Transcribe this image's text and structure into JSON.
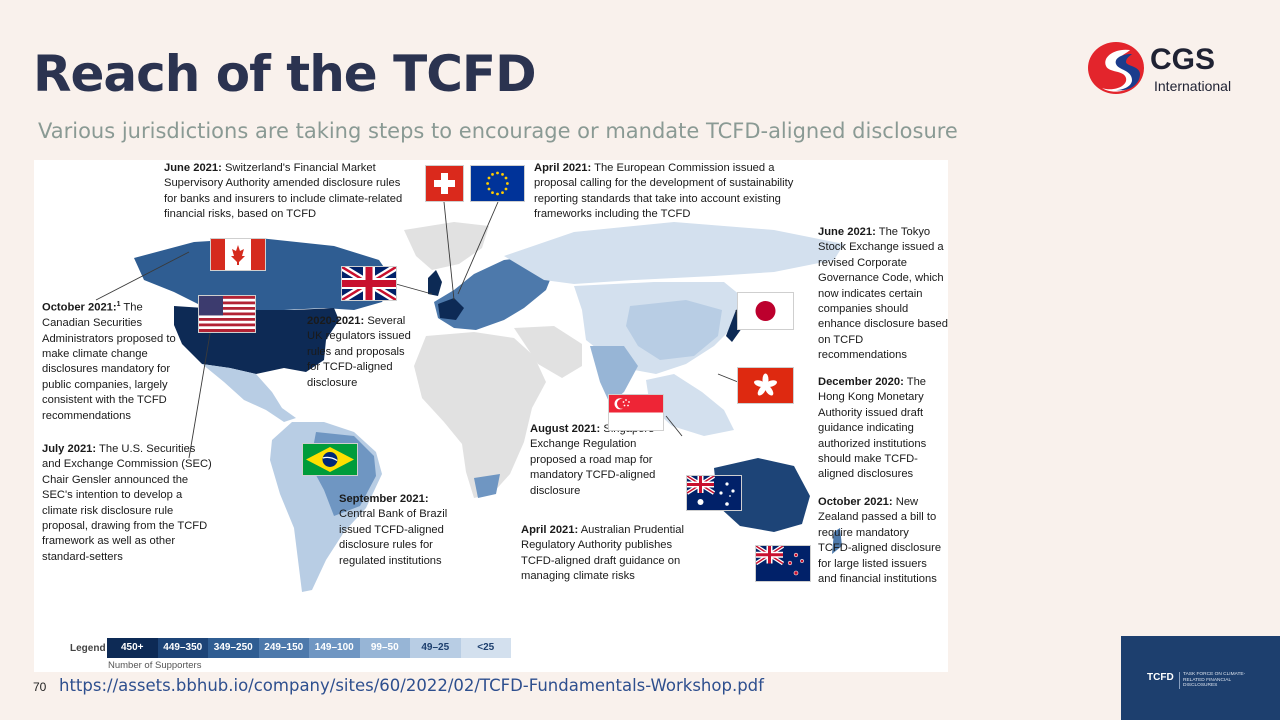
{
  "slide": {
    "title": "Reach of the TCFD",
    "subtitle": "Various jurisdictions are taking steps to encourage or mandate TCFD-aligned disclosure",
    "page_number": "70",
    "source_url": "https://assets.bbhub.io/company/sites/60/2022/02/TCFD-Fundamentals-Workshop.pdf"
  },
  "logo": {
    "name": "CGS",
    "sub": "International",
    "colors": {
      "red": "#e3252c",
      "blue": "#1b3c8c"
    }
  },
  "tcfd_badge": {
    "mark": "TCFD",
    "full": "TASK FORCE ON CLIMATE-RELATED FINANCIAL DISCLOSURES"
  },
  "notes": {
    "switzerland": {
      "date": "June 2021:",
      "text": " Switzerland's Financial Market Supervisory Authority amended disclosure rules for banks and insurers to include climate-related financial risks, based on TCFD"
    },
    "eu": {
      "date": "April 2021:",
      "text": " The European Commission issued a proposal calling for the development of sustainability reporting standards that take into account existing frameworks including the TCFD"
    },
    "japan": {
      "date": "June 2021:",
      "text": " The Tokyo Stock Exchange issued a revised Corporate Governance Code, which now indicates certain companies should enhance disclosure based on TCFD recommendations"
    },
    "canada": {
      "date": "October 2021:",
      "sup": "1",
      "text": " The Canadian Securities Administrators proposed to make climate change disclosures mandatory for public companies, largely consistent with the TCFD recommendations"
    },
    "uk": {
      "date": "2020-2021:",
      "text": " Several UK regulators issued rules and proposals for TCFD-aligned disclosure"
    },
    "hongkong": {
      "date": "December 2020:",
      "text": " The Hong Kong Monetary Authority issued draft guidance indicating authorized institutions should make TCFD-aligned disclosures"
    },
    "usa": {
      "date": "July 2021:",
      "text": " The U.S. Securities and Exchange Commission (SEC) Chair Gensler announced the SEC's intention to develop a climate risk disclosure rule proposal, drawing from the TCFD framework as well as other standard-setters"
    },
    "singapore": {
      "date": "August 2021:",
      "text": " Singapore Exchange Regulation proposed a road map for mandatory TCFD-aligned disclosure"
    },
    "brazil": {
      "date": "September 2021:",
      "text": " Central Bank of Brazil issued TCFD-aligned disclosure rules for regulated institutions"
    },
    "australia": {
      "date": "April 2021:",
      "text": " Australian Prudential Regulatory Authority publishes TCFD-aligned draft guidance on managing climate risks"
    },
    "newzealand": {
      "date": "October 2021:",
      "text": " New Zealand passed a bill to require mandatory TCFD-aligned disclosure for large listed issuers and financial institutions"
    }
  },
  "flags": [
    {
      "country": "canada",
      "icon": "canada-flag-icon"
    },
    {
      "country": "usa",
      "icon": "usa-flag-icon"
    },
    {
      "country": "uk",
      "icon": "uk-flag-icon"
    },
    {
      "country": "switzerland",
      "icon": "switzerland-flag-icon"
    },
    {
      "country": "eu",
      "icon": "eu-flag-icon"
    },
    {
      "country": "japan",
      "icon": "japan-flag-icon"
    },
    {
      "country": "hongkong",
      "icon": "hongkong-flag-icon"
    },
    {
      "country": "singapore",
      "icon": "singapore-flag-icon"
    },
    {
      "country": "brazil",
      "icon": "brazil-flag-icon"
    },
    {
      "country": "australia",
      "icon": "australia-flag-icon"
    },
    {
      "country": "newzealand",
      "icon": "newzealand-flag-icon"
    }
  ],
  "legend": {
    "label": "Legend",
    "caption": "Number of Supporters",
    "bins": [
      {
        "label": "450+",
        "color": "#0d2a55",
        "text_color": "#ffffff"
      },
      {
        "label": "449–350",
        "color": "#1d4477",
        "text_color": "#ffffff"
      },
      {
        "label": "349–250",
        "color": "#2f5d92",
        "text_color": "#ffffff"
      },
      {
        "label": "249–150",
        "color": "#4d79ab",
        "text_color": "#ffffff"
      },
      {
        "label": "149–100",
        "color": "#6f96c2",
        "text_color": "#ffffff"
      },
      {
        "label": "99–50",
        "color": "#97b5d6",
        "text_color": "#ffffff"
      },
      {
        "label": "49–25",
        "color": "#b8cde4",
        "text_color": "#1d3f6e"
      },
      {
        "label": "<25",
        "color": "#d3e0ee",
        "text_color": "#1d3f6e"
      }
    ]
  }
}
